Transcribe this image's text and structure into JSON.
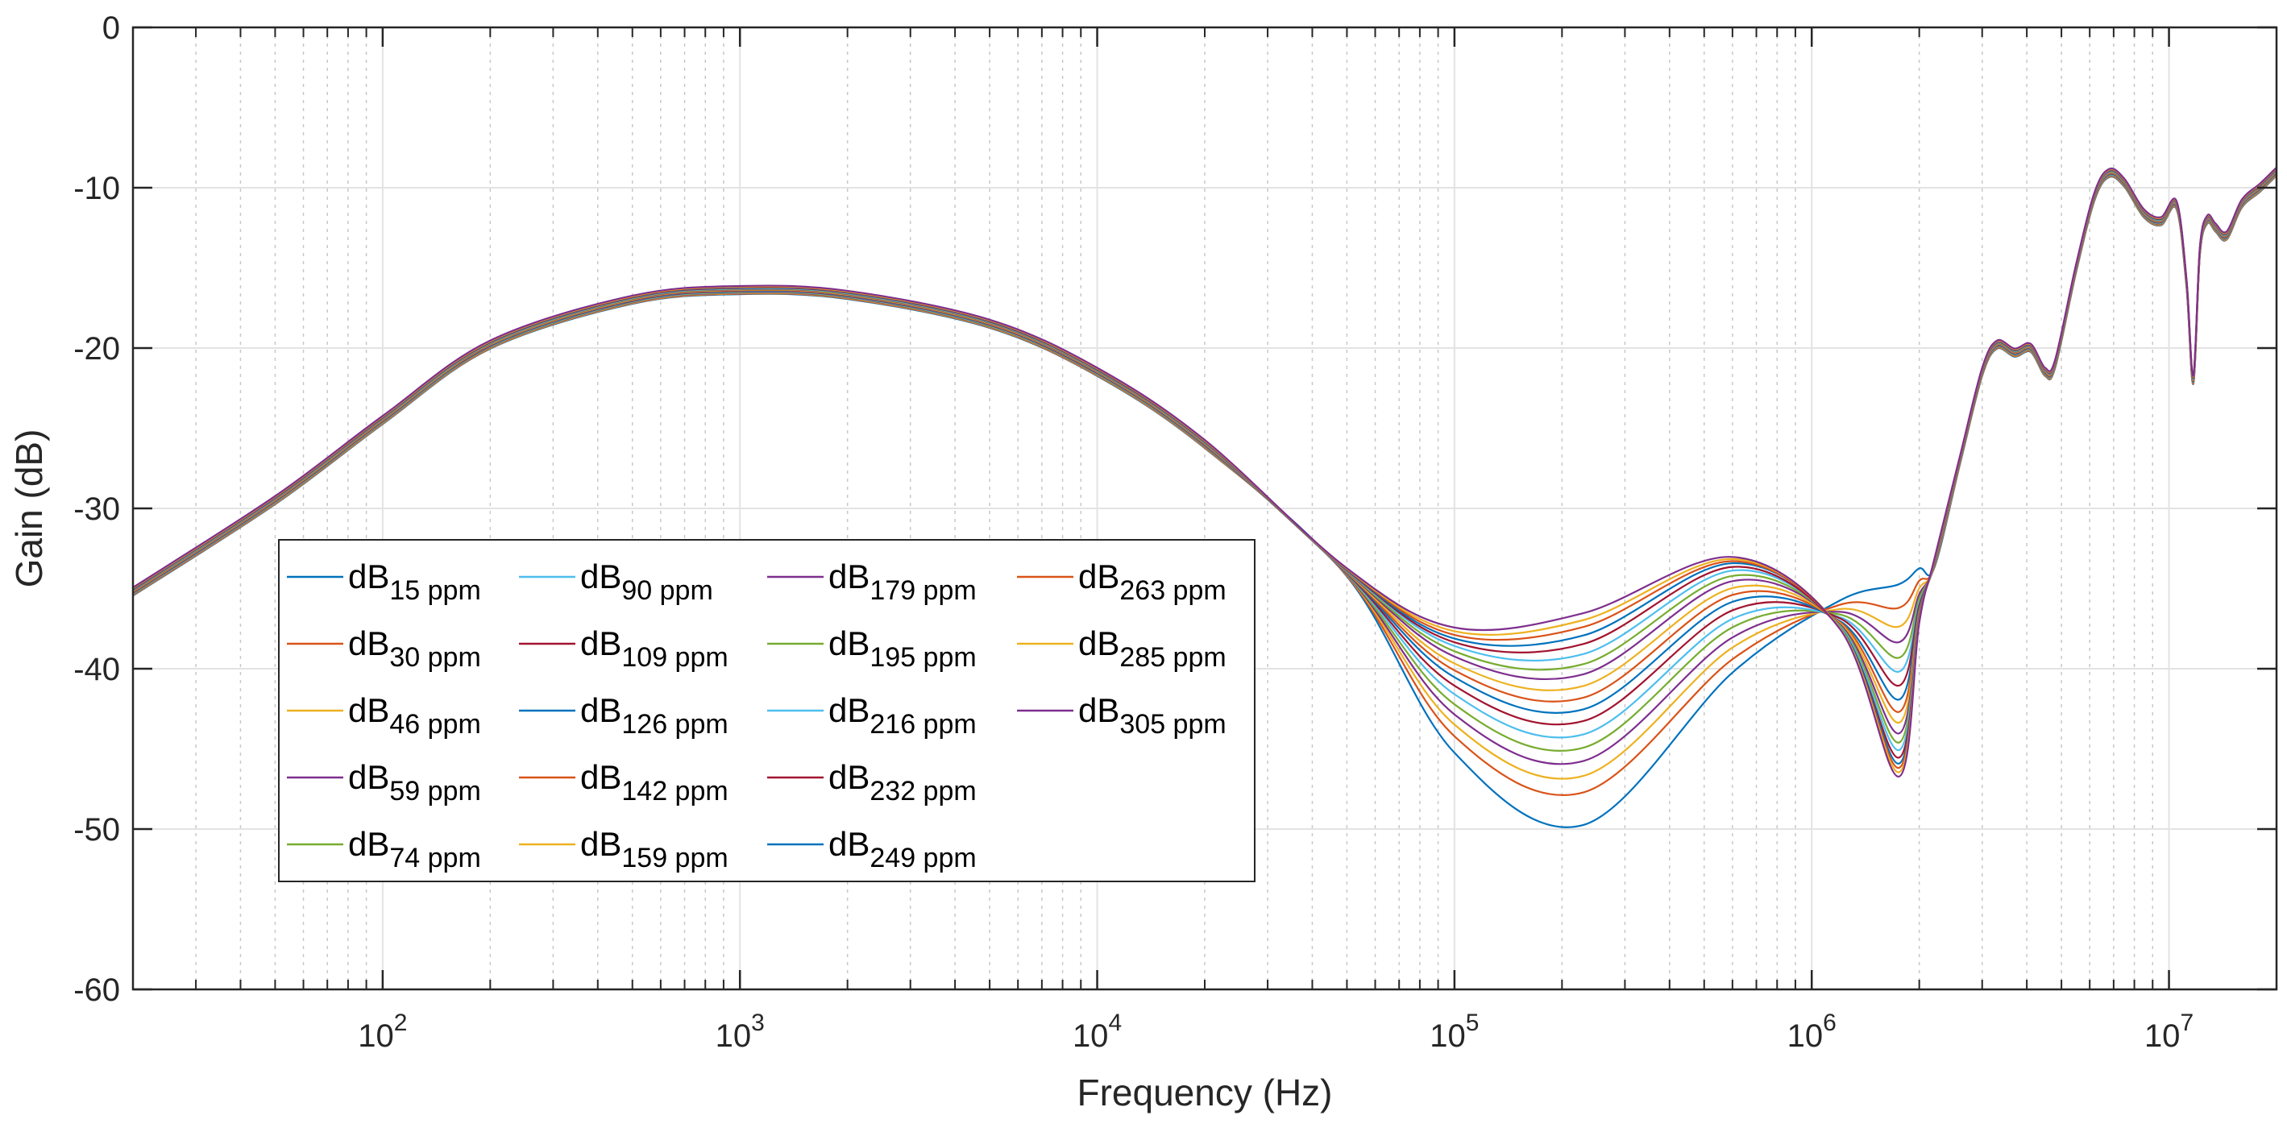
{
  "chart_data": {
    "type": "line",
    "xscale": "log",
    "xlabel": "Frequency (Hz)",
    "ylabel": "Gain (dB)",
    "xlim": [
      20,
      20000000
    ],
    "ylim": [
      -60,
      0
    ],
    "grid": true,
    "x_ticks": [
      {
        "value": 100,
        "base": "10",
        "exp": "2"
      },
      {
        "value": 1000,
        "base": "10",
        "exp": "3"
      },
      {
        "value": 10000,
        "base": "10",
        "exp": "4"
      },
      {
        "value": 100000,
        "base": "10",
        "exp": "5"
      },
      {
        "value": 1000000,
        "base": "10",
        "exp": "6"
      },
      {
        "value": 10000000,
        "base": "10",
        "exp": "7"
      }
    ],
    "y_ticks": [
      {
        "value": 0,
        "label": "0"
      },
      {
        "value": -10,
        "label": "-10"
      },
      {
        "value": -20,
        "label": "-20"
      },
      {
        "value": -30,
        "label": "-30"
      },
      {
        "value": -40,
        "label": "-40"
      },
      {
        "value": -50,
        "label": "-50"
      },
      {
        "value": -60,
        "label": "-60"
      }
    ],
    "legend_position": "lower-left",
    "legend_columns": 4,
    "common_low_freq_x": [
      20,
      50,
      100,
      200,
      500,
      1000,
      2000,
      5000,
      10000,
      20000,
      50000
    ],
    "common_low_freq_y": [
      -35.2,
      -29.5,
      -24.5,
      -19.8,
      -17.0,
      -16.4,
      -16.7,
      -18.5,
      -21.5,
      -26.0,
      -34.0
    ],
    "common_high_freq_x": [
      2200000,
      2600000,
      3000000,
      3300000,
      3700000,
      4100000,
      4500000,
      4800000,
      5500000,
      6200000,
      6800000,
      7500000,
      8500000,
      9500000,
      10500000,
      11200000,
      11700000,
      12200000,
      12800000,
      13500000,
      14500000,
      16000000,
      18000000,
      20000000
    ],
    "common_high_freq_y": [
      -33.5,
      -27.0,
      -21.5,
      -19.8,
      -20.3,
      -20.0,
      -21.5,
      -21.0,
      -15.0,
      -10.5,
      -9.1,
      -9.7,
      -11.6,
      -12.1,
      -11.1,
      -16.0,
      -22.0,
      -14.0,
      -12.0,
      -12.5,
      -13.0,
      -11.0,
      -10.0,
      -9.0
    ],
    "x_high_window": [
      100000,
      230000,
      600000,
      1200000,
      1750000,
      2000000
    ],
    "series": [
      {
        "name": "dB",
        "sub": "15 ppm",
        "color": "#0072BD",
        "y_high": [
          -45.0,
          -49.5,
          -40.0,
          -35.5,
          -34.5,
          -33.5
        ]
      },
      {
        "name": "dB",
        "sub": "30 ppm",
        "color": "#D95319",
        "y_high": [
          -44.0,
          -47.5,
          -39.2,
          -35.8,
          -36.0,
          -34.3
        ]
      },
      {
        "name": "dB",
        "sub": "46 ppm",
        "color": "#EDB120",
        "y_high": [
          -43.3,
          -46.5,
          -38.5,
          -36.1,
          -37.2,
          -34.8
        ]
      },
      {
        "name": "dB",
        "sub": "59 ppm",
        "color": "#7E2F8E",
        "y_high": [
          -42.7,
          -45.6,
          -37.9,
          -36.3,
          -38.2,
          -35.2
        ]
      },
      {
        "name": "dB",
        "sub": "74 ppm",
        "color": "#77AC30",
        "y_high": [
          -42.1,
          -44.8,
          -37.3,
          -36.5,
          -39.2,
          -35.5
        ]
      },
      {
        "name": "dB",
        "sub": "90 ppm",
        "color": "#4DBEEE",
        "y_high": [
          -41.5,
          -44.0,
          -36.8,
          -36.7,
          -40.1,
          -35.8
        ]
      },
      {
        "name": "dB",
        "sub": "109 ppm",
        "color": "#A2142F",
        "y_high": [
          -41.0,
          -43.2,
          -36.3,
          -36.8,
          -41.0,
          -36.0
        ]
      },
      {
        "name": "dB",
        "sub": "126 ppm",
        "color": "#0072BD",
        "y_high": [
          -40.5,
          -42.5,
          -35.8,
          -37.0,
          -41.9,
          -36.2
        ]
      },
      {
        "name": "dB",
        "sub": "142 ppm",
        "color": "#D95319",
        "y_high": [
          -40.1,
          -41.8,
          -35.4,
          -37.1,
          -42.7,
          -36.4
        ]
      },
      {
        "name": "dB",
        "sub": "159 ppm",
        "color": "#EDB120",
        "y_high": [
          -39.7,
          -41.1,
          -35.0,
          -37.2,
          -43.4,
          -36.6
        ]
      },
      {
        "name": "dB",
        "sub": "179 ppm",
        "color": "#7E2F8E",
        "y_high": [
          -39.3,
          -40.4,
          -34.6,
          -37.3,
          -44.1,
          -36.7
        ]
      },
      {
        "name": "dB",
        "sub": "195 ppm",
        "color": "#77AC30",
        "y_high": [
          -39.0,
          -39.8,
          -34.3,
          -37.4,
          -44.7,
          -36.8
        ]
      },
      {
        "name": "dB",
        "sub": "216 ppm",
        "color": "#4DBEEE",
        "y_high": [
          -38.7,
          -39.2,
          -34.0,
          -37.5,
          -45.2,
          -36.9
        ]
      },
      {
        "name": "dB",
        "sub": "232 ppm",
        "color": "#A2142F",
        "y_high": [
          -38.5,
          -38.6,
          -33.8,
          -37.6,
          -45.7,
          -37.0
        ]
      },
      {
        "name": "dB",
        "sub": "249 ppm",
        "color": "#0072BD",
        "y_high": [
          -38.3,
          -38.1,
          -33.6,
          -37.6,
          -46.1,
          -37.1
        ]
      },
      {
        "name": "dB",
        "sub": "263 ppm",
        "color": "#D95319",
        "y_high": [
          -38.1,
          -37.6,
          -33.5,
          -37.7,
          -46.4,
          -37.2
        ]
      },
      {
        "name": "dB",
        "sub": "285 ppm",
        "color": "#EDB120",
        "y_high": [
          -37.9,
          -37.2,
          -33.4,
          -37.7,
          -46.7,
          -37.3
        ]
      },
      {
        "name": "dB",
        "sub": "305 ppm",
        "color": "#7E2F8E",
        "y_high": [
          -37.7,
          -36.8,
          -33.3,
          -37.8,
          -47.0,
          -37.4
        ]
      }
    ]
  }
}
